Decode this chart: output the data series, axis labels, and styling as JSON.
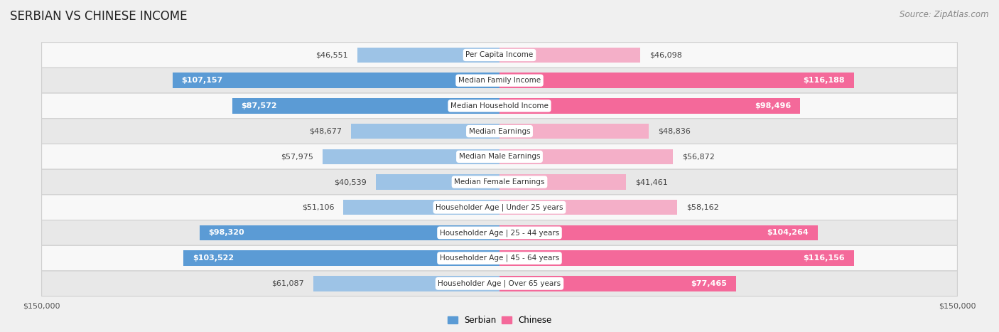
{
  "title": "SERBIAN VS CHINESE INCOME",
  "source": "Source: ZipAtlas.com",
  "categories": [
    "Per Capita Income",
    "Median Family Income",
    "Median Household Income",
    "Median Earnings",
    "Median Male Earnings",
    "Median Female Earnings",
    "Householder Age | Under 25 years",
    "Householder Age | 25 - 44 years",
    "Householder Age | 45 - 64 years",
    "Householder Age | Over 65 years"
  ],
  "serbian_values": [
    46551,
    107157,
    87572,
    48677,
    57975,
    40539,
    51106,
    98320,
    103522,
    61087
  ],
  "chinese_values": [
    46098,
    116188,
    98496,
    48836,
    56872,
    41461,
    58162,
    104264,
    116156,
    77465
  ],
  "max_value": 150000,
  "serbian_color_dark": "#5b9bd5",
  "serbian_color_light": "#9dc3e6",
  "chinese_color_dark": "#f4699a",
  "chinese_color_light": "#f4afc8",
  "serbian_label": "Serbian",
  "chinese_label": "Chinese",
  "bg_color": "#f0f0f0",
  "row_bg_odd": "#e8e8e8",
  "row_bg_even": "#f8f8f8",
  "title_fontsize": 12,
  "source_fontsize": 8.5,
  "value_fontsize": 8,
  "category_fontsize": 7.5,
  "axis_fontsize": 8,
  "dark_threshold": 70000
}
